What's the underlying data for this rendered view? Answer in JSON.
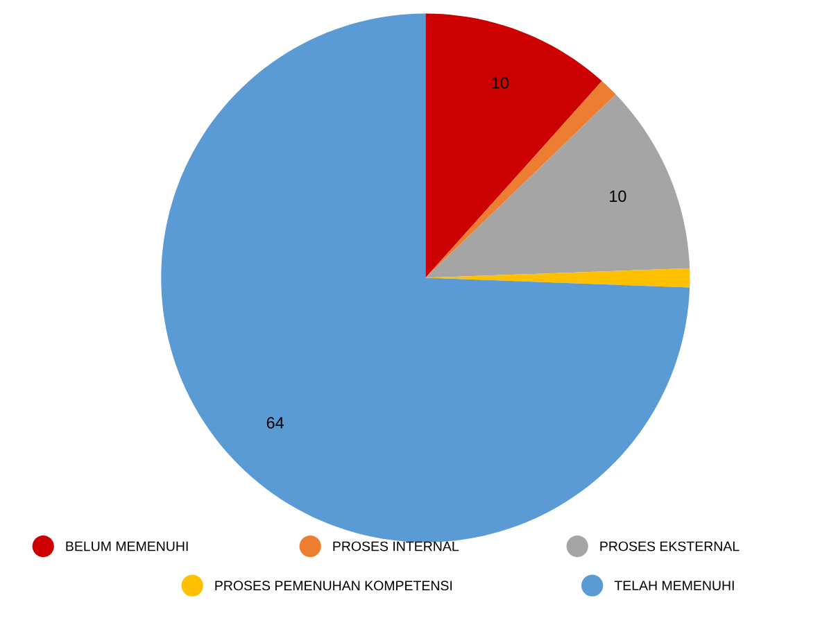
{
  "chart_data": {
    "type": "pie",
    "categories": [
      "BELUM MEMENUHI",
      "PROSES INTERNAL",
      "PROSES EKSTERNAL",
      "PROSES PEMENUHAN KOMPETENSI",
      "TELAH MEMENUHI"
    ],
    "values": [
      10,
      1,
      10,
      1,
      64
    ],
    "value_labels": [
      "10",
      null,
      "10",
      null,
      "64"
    ],
    "colors": [
      "#cc0000",
      "#ed7d31",
      "#a5a5a5",
      "#ffc000",
      "#5b9bd5"
    ],
    "legend": "bottom"
  }
}
